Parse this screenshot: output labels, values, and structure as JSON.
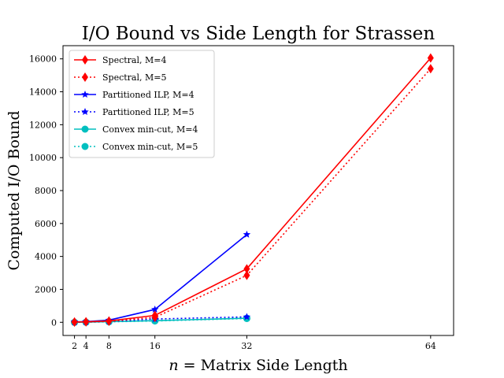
{
  "chart_data": {
    "type": "line",
    "title": "I/O Bound vs Side Length for Strassen",
    "xlabel": {
      "var": "n",
      "text": " = Matrix Side Length"
    },
    "ylabel": "Computed I/O Bound",
    "xlim": [
      0,
      68
    ],
    "ylim": [
      -800,
      16800
    ],
    "xticks": [
      2,
      4,
      8,
      16,
      32,
      64
    ],
    "yticks": [
      0,
      2000,
      4000,
      6000,
      8000,
      10000,
      12000,
      14000,
      16000
    ],
    "grid": false,
    "legend": {
      "placement": "top-left"
    },
    "series": [
      {
        "name": "Spectral, M=4",
        "color": "#ff0000",
        "linestyle": "solid",
        "marker": "diamond",
        "x": [
          2,
          4,
          8,
          16,
          32,
          64
        ],
        "y": [
          20,
          30,
          80,
          420,
          3250,
          16050
        ]
      },
      {
        "name": "Spectral, M=5",
        "color": "#ff0000",
        "linestyle": "dotted",
        "marker": "diamond",
        "x": [
          2,
          4,
          8,
          16,
          32,
          64
        ],
        "y": [
          15,
          25,
          60,
          300,
          2850,
          15400
        ]
      },
      {
        "name": "Partitioned ILP, M=4",
        "color": "#0000ff",
        "linestyle": "solid",
        "marker": "star",
        "x": [
          2,
          4,
          8,
          16,
          32
        ],
        "y": [
          20,
          40,
          130,
          780,
          5330
        ]
      },
      {
        "name": "Partitioned ILP, M=5",
        "color": "#0000ff",
        "linestyle": "dotted",
        "marker": "star",
        "x": [
          2,
          4,
          8,
          16,
          32
        ],
        "y": [
          10,
          20,
          60,
          200,
          330
        ]
      },
      {
        "name": "Convex min-cut, M=4",
        "color": "#00bfbf",
        "linestyle": "solid",
        "marker": "circle",
        "x": [
          2,
          4,
          8,
          16,
          32
        ],
        "y": [
          0,
          10,
          40,
          100,
          250
        ]
      },
      {
        "name": "Convex min-cut, M=5",
        "color": "#00bfbf",
        "linestyle": "dotted",
        "marker": "circle",
        "x": [
          2,
          4,
          8,
          16,
          32
        ],
        "y": [
          0,
          5,
          30,
          80,
          230
        ]
      }
    ]
  }
}
